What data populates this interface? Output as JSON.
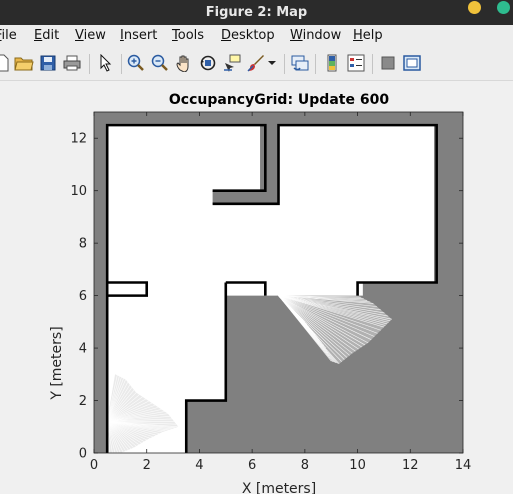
{
  "window": {
    "title": "Figure 2: Map"
  },
  "menu": {
    "items": [
      {
        "label": "File",
        "mnemonic": "F",
        "rest": "ile"
      },
      {
        "label": "Edit",
        "mnemonic": "E",
        "rest": "dit"
      },
      {
        "label": "View",
        "mnemonic": "V",
        "rest": "iew"
      },
      {
        "label": "Insert",
        "mnemonic": "I",
        "rest": "nsert"
      },
      {
        "label": "Tools",
        "mnemonic": "T",
        "rest": "ools"
      },
      {
        "label": "Desktop",
        "mnemonic": "D",
        "rest": "esktop"
      },
      {
        "label": "Window",
        "mnemonic": "W",
        "rest": "indow"
      },
      {
        "label": "Help",
        "mnemonic": "H",
        "rest": "elp"
      }
    ]
  },
  "toolbar": {
    "buttons": [
      {
        "name": "new-figure-icon"
      },
      {
        "name": "open-file-icon"
      },
      {
        "name": "save-figure-icon"
      },
      {
        "name": "print-figure-icon"
      },
      {
        "name": "edit-plot-arrow-icon"
      },
      {
        "name": "zoom-in-icon"
      },
      {
        "name": "zoom-out-icon"
      },
      {
        "name": "pan-hand-icon"
      },
      {
        "name": "rotate-3d-icon"
      },
      {
        "name": "data-cursor-icon"
      },
      {
        "name": "brush-icon"
      },
      {
        "name": "brush-dropdown-icon"
      },
      {
        "name": "link-plot-icon"
      },
      {
        "name": "insert-colorbar-icon"
      },
      {
        "name": "insert-legend-icon"
      },
      {
        "name": "hide-plot-tools-icon"
      },
      {
        "name": "show-plot-tools-icon"
      }
    ]
  },
  "chart_data": {
    "type": "heatmap",
    "title": "OccupancyGrid: Update 600",
    "xlabel": "X [meters]",
    "ylabel": "Y [meters]",
    "xlim": [
      0,
      14
    ],
    "ylim": [
      0,
      13
    ],
    "xticks": [
      0,
      2,
      4,
      6,
      8,
      10,
      12,
      14
    ],
    "yticks": [
      0,
      2,
      4,
      6,
      8,
      10,
      12
    ],
    "grid": false,
    "colors": {
      "unknown": "#808080",
      "free": "#ffffff",
      "occupied": "#000000",
      "background": "#f0f0f0"
    },
    "free_regions": [
      {
        "polygon": [
          [
            0.5,
            12.5
          ],
          [
            6.3,
            12.5
          ],
          [
            6.3,
            10.0
          ],
          [
            4.5,
            10.0
          ],
          [
            4.5,
            9.5
          ],
          [
            7.0,
            9.5
          ],
          [
            7.0,
            12.5
          ],
          [
            12.9,
            12.5
          ],
          [
            12.9,
            6.5
          ],
          [
            10.2,
            6.5
          ],
          [
            10.2,
            6.0
          ],
          [
            5.0,
            6.0
          ],
          [
            5.0,
            2.0
          ],
          [
            3.5,
            2.0
          ],
          [
            3.5,
            0
          ],
          [
            0.5,
            0
          ]
        ]
      },
      {
        "polygon": [
          [
            0.5,
            6.5
          ],
          [
            2.0,
            6.5
          ],
          [
            2.0,
            6.0
          ],
          [
            0.5,
            6.0
          ]
        ]
      }
    ],
    "occupied_walls": [
      {
        "polyline": [
          [
            0.5,
            0
          ],
          [
            0.5,
            12.5
          ],
          [
            6.5,
            12.5
          ],
          [
            6.5,
            10.0
          ],
          [
            4.5,
            10.0
          ]
        ]
      },
      {
        "polyline": [
          [
            4.5,
            9.5
          ],
          [
            7.0,
            9.5
          ],
          [
            7.0,
            12.5
          ],
          [
            13.0,
            12.5
          ],
          [
            13.0,
            6.5
          ],
          [
            10.0,
            6.5
          ],
          [
            10.0,
            6.0
          ]
        ]
      },
      {
        "polyline": [
          [
            0.5,
            6.5
          ],
          [
            2.0,
            6.5
          ],
          [
            2.0,
            6.0
          ],
          [
            0.5,
            6.0
          ]
        ]
      },
      {
        "polyline": [
          [
            5.0,
            6.5
          ],
          [
            6.5,
            6.5
          ],
          [
            6.5,
            6.0
          ]
        ]
      },
      {
        "polyline": [
          [
            3.5,
            0
          ],
          [
            3.5,
            2.0
          ],
          [
            5.0,
            2.0
          ],
          [
            5.0,
            6.5
          ]
        ]
      }
    ],
    "scan_rays": [
      {
        "origin": [
          7.0,
          6.0
        ],
        "ends": [
          [
            7.2,
            5.8
          ],
          [
            7.6,
            5.4
          ],
          [
            8.0,
            5.0
          ],
          [
            8.4,
            4.5
          ],
          [
            8.8,
            4.0
          ],
          [
            9.0,
            3.5
          ],
          [
            9.3,
            3.4
          ],
          [
            9.8,
            3.8
          ],
          [
            10.4,
            4.2
          ],
          [
            11.0,
            4.8
          ],
          [
            11.3,
            5.1
          ],
          [
            10.6,
            5.7
          ],
          [
            10.0,
            6.0
          ]
        ]
      },
      {
        "origin": [
          0.5,
          1.2
        ],
        "ends": [
          [
            0.5,
            0.0
          ],
          [
            1.0,
            0.0
          ],
          [
            1.5,
            0.2
          ],
          [
            2.0,
            0.5
          ],
          [
            2.6,
            0.8
          ],
          [
            3.2,
            1.0
          ],
          [
            2.8,
            1.5
          ],
          [
            2.2,
            1.9
          ],
          [
            1.6,
            2.3
          ],
          [
            1.2,
            2.8
          ],
          [
            0.8,
            3.0
          ]
        ]
      }
    ]
  }
}
